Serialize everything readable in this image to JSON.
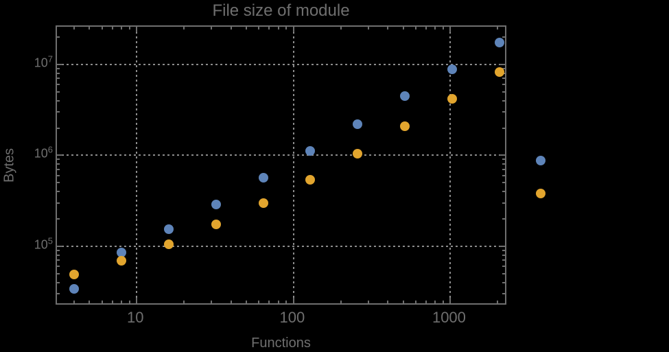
{
  "palette": {
    "background": "#000000",
    "frame": "#6f6f6f",
    "grid": "#8c8c8c",
    "text": "#6f6f6f",
    "series1": "#5e84b9",
    "series2": "#e2a52e"
  },
  "chart_data": {
    "type": "scatter",
    "title": "File size of module",
    "xlabel": "Functions",
    "ylabel": "Bytes",
    "x_scale": "log",
    "y_scale": "log",
    "xlim": [
      3.1,
      2320
    ],
    "ylim": [
      22000,
      26000000
    ],
    "grid": "dotted",
    "gridlines": {
      "x": [
        10,
        100,
        1000
      ],
      "y": [
        100000,
        1000000,
        10000000
      ]
    },
    "x_major_ticks": [
      {
        "value": 10,
        "label": "10"
      },
      {
        "value": 100,
        "label": "100"
      },
      {
        "value": 1000,
        "label": "1000"
      }
    ],
    "y_major_ticks": [
      {
        "value": 100000,
        "mantissa": "10",
        "exponent": "5"
      },
      {
        "value": 1000000,
        "mantissa": "10",
        "exponent": "6"
      },
      {
        "value": 10000000,
        "mantissa": "10",
        "exponent": "7"
      }
    ],
    "x": [
      4,
      8,
      16,
      32,
      64,
      128,
      256,
      512,
      1024,
      2048
    ],
    "series": [
      {
        "name": "series-1",
        "color": "#5e84b9",
        "values": [
          34000,
          86000,
          153000,
          290000,
          564000,
          1110000,
          2190000,
          4460000,
          8780000,
          17300000
        ]
      },
      {
        "name": "series-2",
        "color": "#e2a52e",
        "values": [
          49000,
          69000,
          105000,
          173000,
          296000,
          540000,
          1050000,
          2080000,
          4160000,
          8200000
        ]
      }
    ],
    "legend": {
      "position": "right-of-frame",
      "labels_visible": false,
      "entries": [
        {
          "series": "series-1",
          "color": "#5e84b9"
        },
        {
          "series": "series-2",
          "color": "#e2a52e"
        }
      ]
    }
  }
}
